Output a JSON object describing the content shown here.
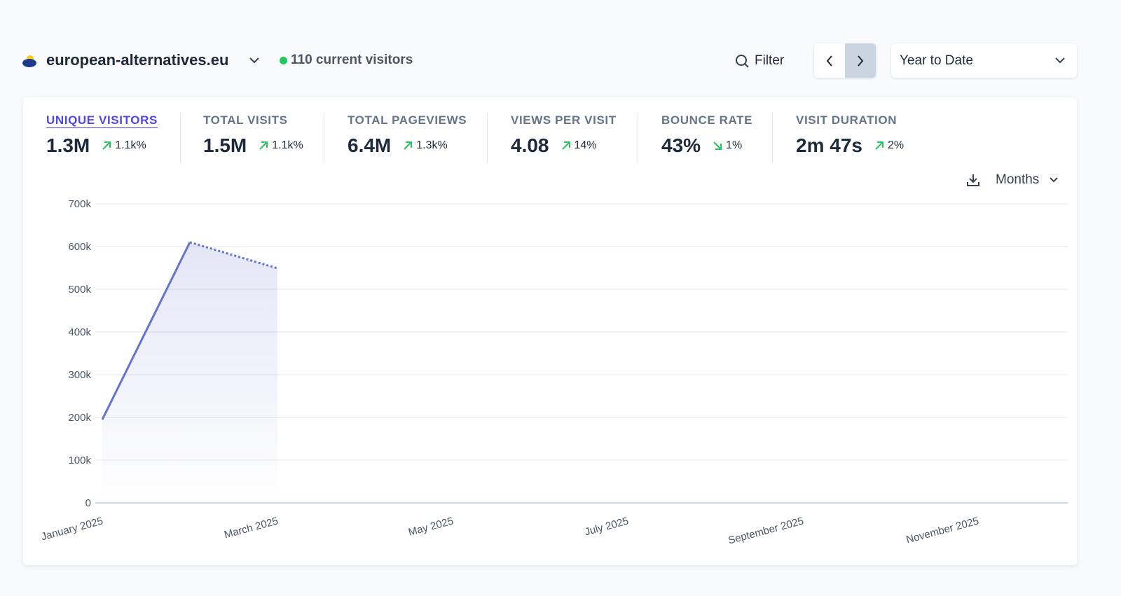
{
  "header": {
    "site": "european-alternatives.eu",
    "current_visitors": "110 current visitors",
    "filter": "Filter",
    "period": "Year to Date"
  },
  "metrics": [
    {
      "label": "UNIQUE VISITORS",
      "value": "1.3M",
      "change": "1.1k%",
      "direction": "up",
      "active": true
    },
    {
      "label": "TOTAL VISITS",
      "value": "1.5M",
      "change": "1.1k%",
      "direction": "up",
      "active": false
    },
    {
      "label": "TOTAL PAGEVIEWS",
      "value": "6.4M",
      "change": "1.3k%",
      "direction": "up",
      "active": false
    },
    {
      "label": "VIEWS PER VISIT",
      "value": "4.08",
      "change": "14%",
      "direction": "up",
      "active": false
    },
    {
      "label": "BOUNCE RATE",
      "value": "43%",
      "change": "1%",
      "direction": "down",
      "active": false
    },
    {
      "label": "VISIT DURATION",
      "value": "2m 47s",
      "change": "2%",
      "direction": "up",
      "active": false
    }
  ],
  "interval": "Months",
  "chart_data": {
    "type": "line",
    "categories": [
      "January 2025",
      null,
      "March 2025",
      null,
      "May 2025",
      null,
      "July 2025",
      null,
      "September 2025",
      null,
      "November 2025",
      null
    ],
    "values": [
      195000,
      610000,
      549000,
      null,
      null,
      null,
      null,
      null,
      null,
      null,
      null,
      null
    ],
    "color": "#6574cd",
    "incomplete_last": true,
    "ylim": [
      0,
      700000
    ],
    "yticks": [
      0,
      {
        "value": 100000,
        "label": "100k"
      },
      {
        "value": 200000,
        "label": "200k"
      },
      {
        "value": 300000,
        "label": "300k"
      },
      {
        "value": 400000,
        "label": "400k"
      },
      {
        "value": 500000,
        "label": "500k"
      },
      {
        "value": 600000,
        "label": "600k"
      },
      {
        "value": 700000,
        "label": "700k"
      }
    ],
    "grid": true
  }
}
